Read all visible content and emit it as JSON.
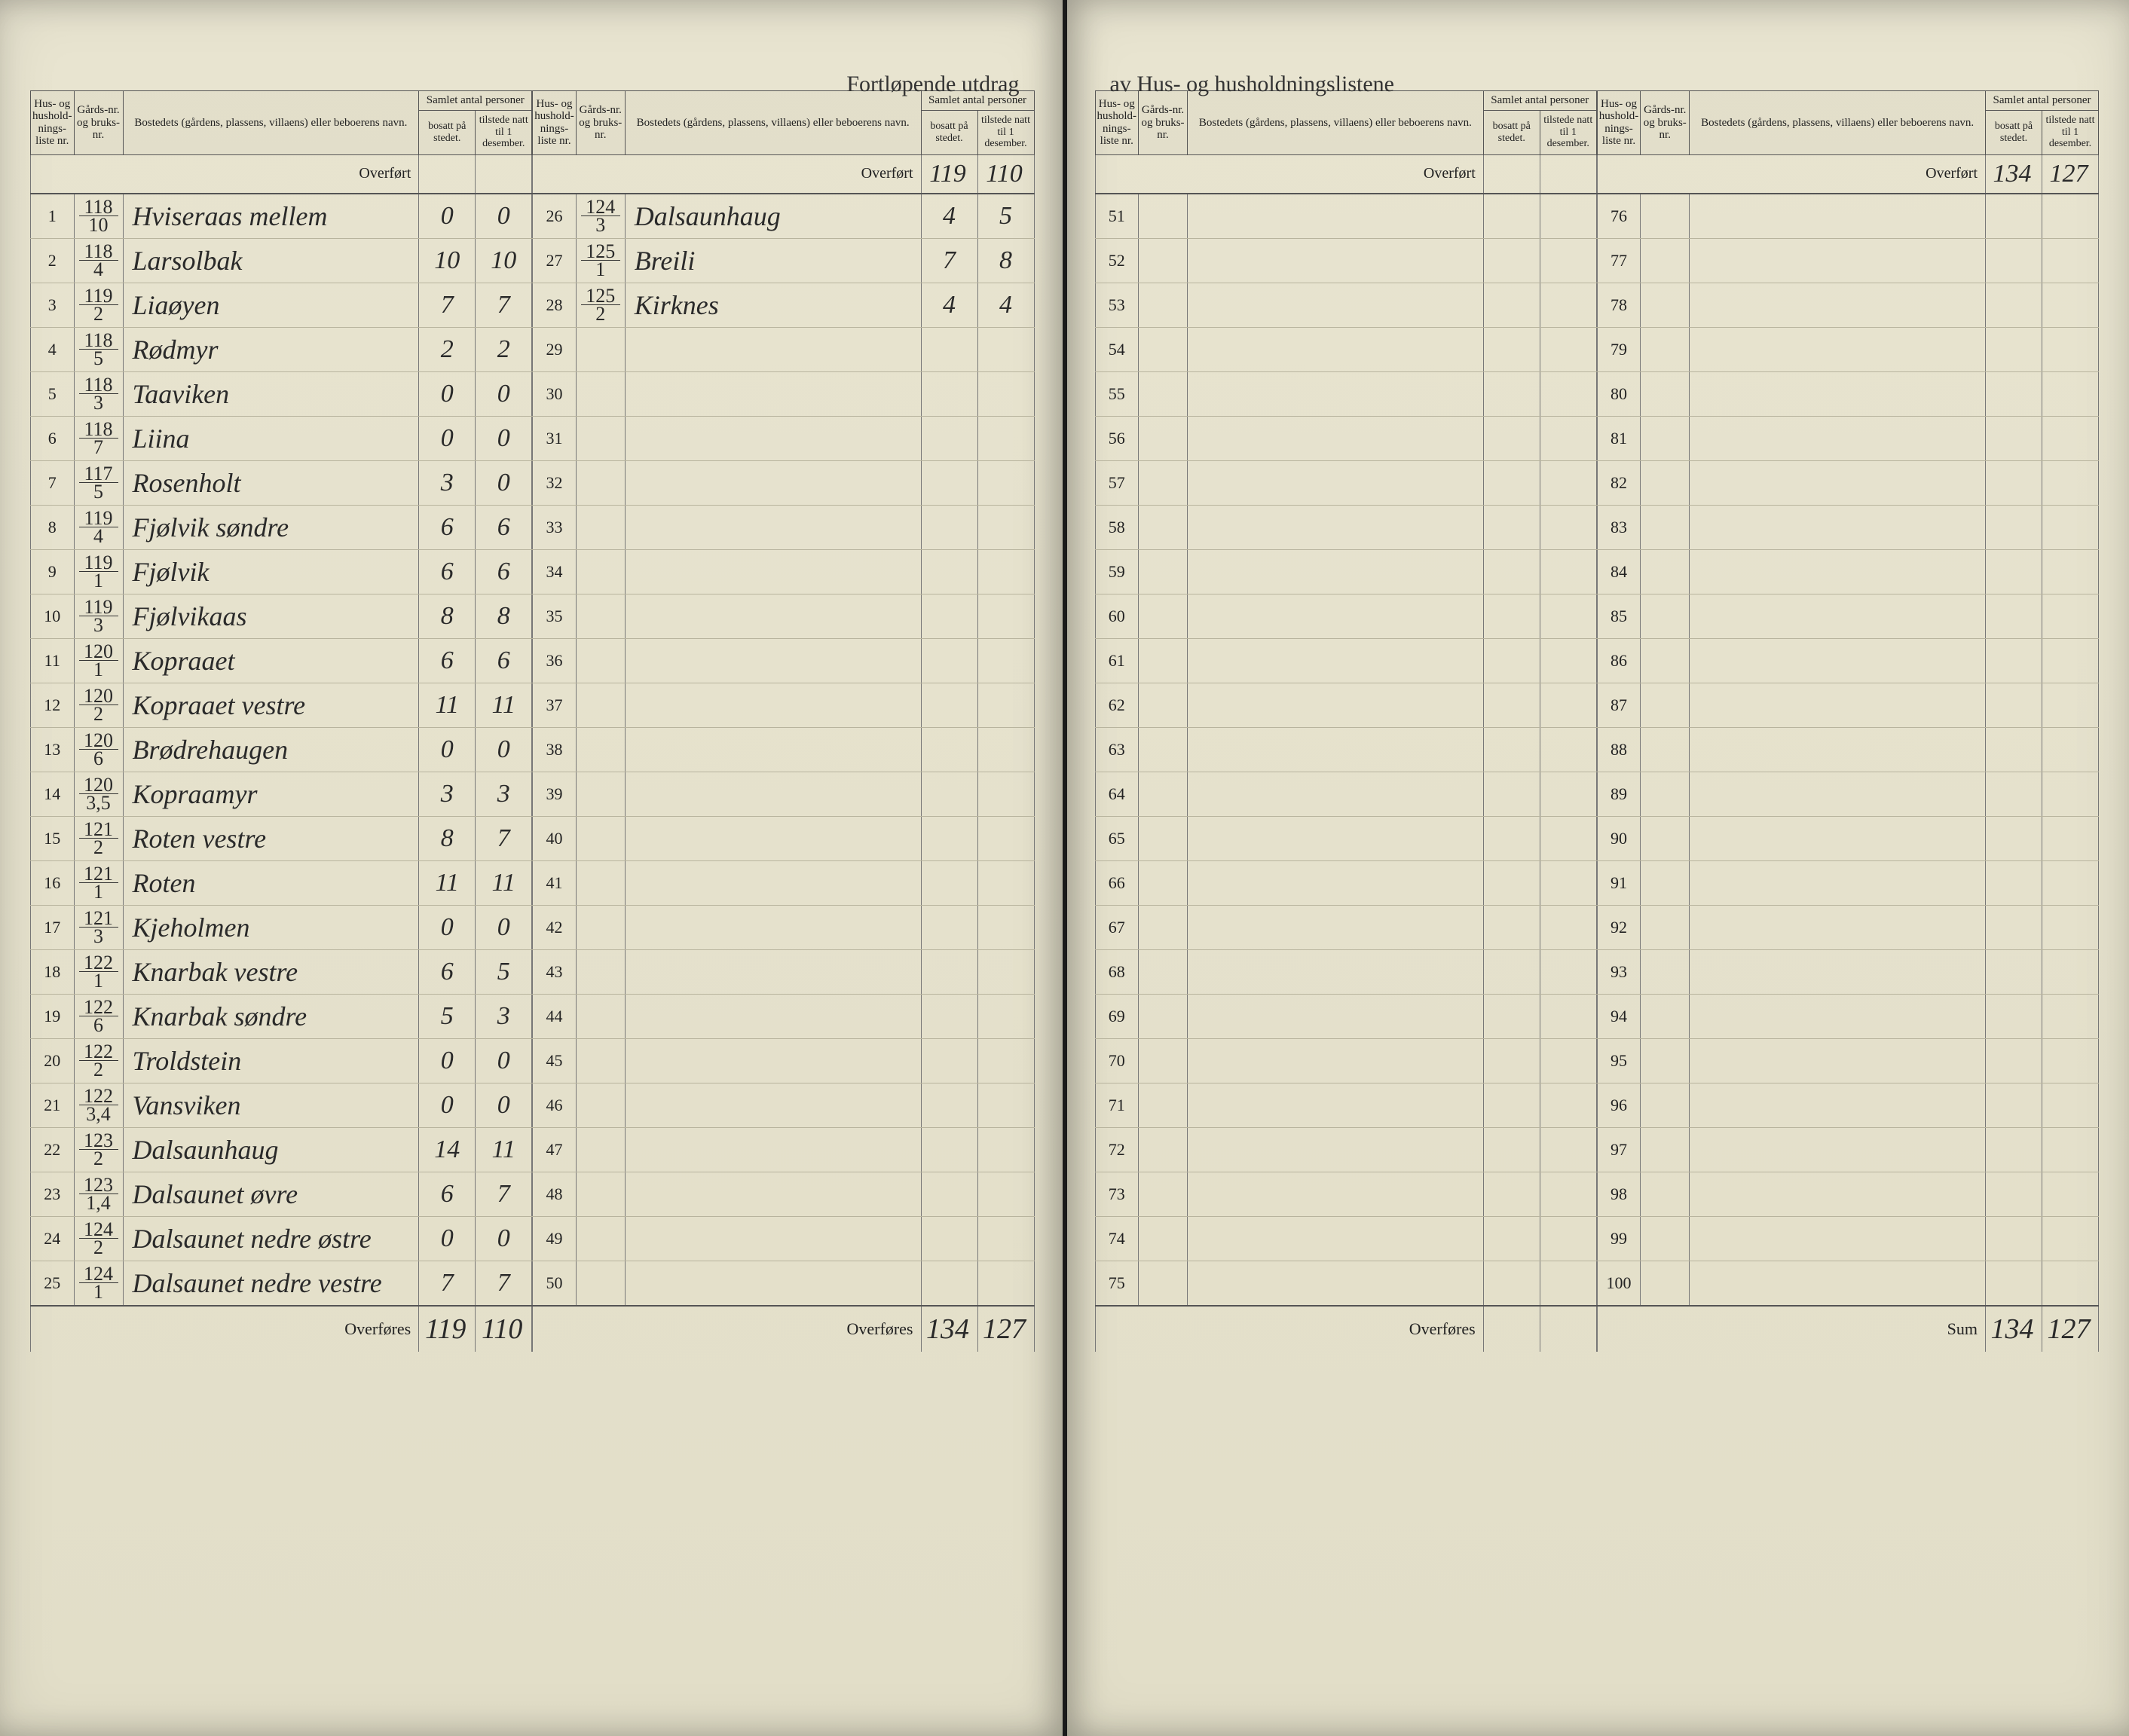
{
  "title_left": "Fortløpende utdrag",
  "title_right": "av Hus- og husholdningslistene",
  "headers": {
    "liste": "Hus- og hushold-nings-liste nr.",
    "gard": "Gårds-nr. og bruks-nr.",
    "bosted": "Bostedets (gårdens, plassens, villaens) eller beboerens navn.",
    "samlet": "Samlet antal personer",
    "bosatt": "bosatt på stedet.",
    "tilstede": "tilstede natt til 1 desember."
  },
  "overfort_label": "Overført",
  "overfores_label": "Overføres",
  "sum_label": "Sum",
  "left_block1_overfort": {
    "bosatt": "",
    "tilstede": ""
  },
  "left_block2_overfort": {
    "bosatt": "119",
    "tilstede": "110"
  },
  "right_block2_overfort": {
    "bosatt": "134",
    "tilstede": "127"
  },
  "left_block1": [
    {
      "n": "1",
      "g": "118",
      "b": "10",
      "name": "Hviseraas mellem",
      "bo": "0",
      "ti": "0"
    },
    {
      "n": "2",
      "g": "118",
      "b": "4",
      "name": "Larsolbak",
      "bo": "10",
      "ti": "10"
    },
    {
      "n": "3",
      "g": "119",
      "b": "2",
      "name": "Liaøyen",
      "bo": "7",
      "ti": "7"
    },
    {
      "n": "4",
      "g": "118",
      "b": "5",
      "name": "Rødmyr",
      "bo": "2",
      "ti": "2"
    },
    {
      "n": "5",
      "g": "118",
      "b": "3",
      "name": "Taaviken",
      "bo": "0",
      "ti": "0"
    },
    {
      "n": "6",
      "g": "118",
      "b": "7",
      "name": "Liina",
      "bo": "0",
      "ti": "0"
    },
    {
      "n": "7",
      "g": "117",
      "b": "5",
      "name": "Rosenholt",
      "bo": "3",
      "ti": "0"
    },
    {
      "n": "8",
      "g": "119",
      "b": "4",
      "name": "Fjølvik søndre",
      "bo": "6",
      "ti": "6"
    },
    {
      "n": "9",
      "g": "119",
      "b": "1",
      "name": "Fjølvik",
      "bo": "6",
      "ti": "6"
    },
    {
      "n": "10",
      "g": "119",
      "b": "3",
      "name": "Fjølvikaas",
      "bo": "8",
      "ti": "8"
    },
    {
      "n": "11",
      "g": "120",
      "b": "1",
      "name": "Kopraaet",
      "bo": "6",
      "ti": "6"
    },
    {
      "n": "12",
      "g": "120",
      "b": "2",
      "name": "Kopraaet vestre",
      "bo": "11",
      "ti": "11"
    },
    {
      "n": "13",
      "g": "120",
      "b": "6",
      "name": "Brødrehaugen",
      "bo": "0",
      "ti": "0"
    },
    {
      "n": "14",
      "g": "120",
      "b": "3,5",
      "name": "Kopraamyr",
      "bo": "3",
      "ti": "3"
    },
    {
      "n": "15",
      "g": "121",
      "b": "2",
      "name": "Roten vestre",
      "bo": "8",
      "ti": "7"
    },
    {
      "n": "16",
      "g": "121",
      "b": "1",
      "name": "Roten",
      "bo": "11",
      "ti": "11"
    },
    {
      "n": "17",
      "g": "121",
      "b": "3",
      "name": "Kjeholmen",
      "bo": "0",
      "ti": "0"
    },
    {
      "n": "18",
      "g": "122",
      "b": "1",
      "name": "Knarbak vestre",
      "bo": "6",
      "ti": "5"
    },
    {
      "n": "19",
      "g": "122",
      "b": "6",
      "name": "Knarbak søndre",
      "bo": "5",
      "ti": "3"
    },
    {
      "n": "20",
      "g": "122",
      "b": "2",
      "name": "Troldstein",
      "bo": "0",
      "ti": "0"
    },
    {
      "n": "21",
      "g": "122",
      "b": "3,4",
      "name": "Vansviken",
      "bo": "0",
      "ti": "0"
    },
    {
      "n": "22",
      "g": "123",
      "b": "2",
      "name": "Dalsaunhaug",
      "bo": "14",
      "ti": "11"
    },
    {
      "n": "23",
      "g": "123",
      "b": "1,4",
      "name": "Dalsaunet øvre",
      "bo": "6",
      "ti": "7"
    },
    {
      "n": "24",
      "g": "124",
      "b": "2",
      "name": "Dalsaunet nedre østre",
      "bo": "0",
      "ti": "0"
    },
    {
      "n": "25",
      "g": "124",
      "b": "1",
      "name": "Dalsaunet nedre vestre",
      "bo": "7",
      "ti": "7"
    }
  ],
  "left_block1_footer": {
    "bosatt": "119",
    "tilstede": "110"
  },
  "left_block2": [
    {
      "n": "26",
      "g": "124",
      "b": "3",
      "name": "Dalsaunhaug",
      "bo": "4",
      "ti": "5"
    },
    {
      "n": "27",
      "g": "125",
      "b": "1",
      "name": "Breili",
      "bo": "7",
      "ti": "8"
    },
    {
      "n": "28",
      "g": "125",
      "b": "2",
      "name": "Kirknes",
      "bo": "4",
      "ti": "4"
    },
    {
      "n": "29"
    },
    {
      "n": "30"
    },
    {
      "n": "31"
    },
    {
      "n": "32"
    },
    {
      "n": "33"
    },
    {
      "n": "34"
    },
    {
      "n": "35"
    },
    {
      "n": "36"
    },
    {
      "n": "37"
    },
    {
      "n": "38"
    },
    {
      "n": "39"
    },
    {
      "n": "40"
    },
    {
      "n": "41"
    },
    {
      "n": "42"
    },
    {
      "n": "43"
    },
    {
      "n": "44"
    },
    {
      "n": "45"
    },
    {
      "n": "46"
    },
    {
      "n": "47"
    },
    {
      "n": "48"
    },
    {
      "n": "49"
    },
    {
      "n": "50"
    }
  ],
  "left_block2_footer": {
    "bosatt": "134",
    "tilstede": "127"
  },
  "right_block1": [
    {
      "n": "51"
    },
    {
      "n": "52"
    },
    {
      "n": "53"
    },
    {
      "n": "54"
    },
    {
      "n": "55"
    },
    {
      "n": "56"
    },
    {
      "n": "57"
    },
    {
      "n": "58"
    },
    {
      "n": "59"
    },
    {
      "n": "60"
    },
    {
      "n": "61"
    },
    {
      "n": "62"
    },
    {
      "n": "63"
    },
    {
      "n": "64"
    },
    {
      "n": "65"
    },
    {
      "n": "66"
    },
    {
      "n": "67"
    },
    {
      "n": "68"
    },
    {
      "n": "69"
    },
    {
      "n": "70"
    },
    {
      "n": "71"
    },
    {
      "n": "72"
    },
    {
      "n": "73"
    },
    {
      "n": "74"
    },
    {
      "n": "75"
    }
  ],
  "right_block1_footer": {
    "bosatt": "",
    "tilstede": ""
  },
  "right_block2": [
    {
      "n": "76"
    },
    {
      "n": "77"
    },
    {
      "n": "78"
    },
    {
      "n": "79"
    },
    {
      "n": "80"
    },
    {
      "n": "81"
    },
    {
      "n": "82"
    },
    {
      "n": "83"
    },
    {
      "n": "84"
    },
    {
      "n": "85"
    },
    {
      "n": "86"
    },
    {
      "n": "87"
    },
    {
      "n": "88"
    },
    {
      "n": "89"
    },
    {
      "n": "90"
    },
    {
      "n": "91"
    },
    {
      "n": "92"
    },
    {
      "n": "93"
    },
    {
      "n": "94"
    },
    {
      "n": "95"
    },
    {
      "n": "96"
    },
    {
      "n": "97"
    },
    {
      "n": "98"
    },
    {
      "n": "99"
    },
    {
      "n": "100"
    }
  ],
  "right_block2_footer": {
    "bosatt": "134",
    "tilstede": "127"
  }
}
